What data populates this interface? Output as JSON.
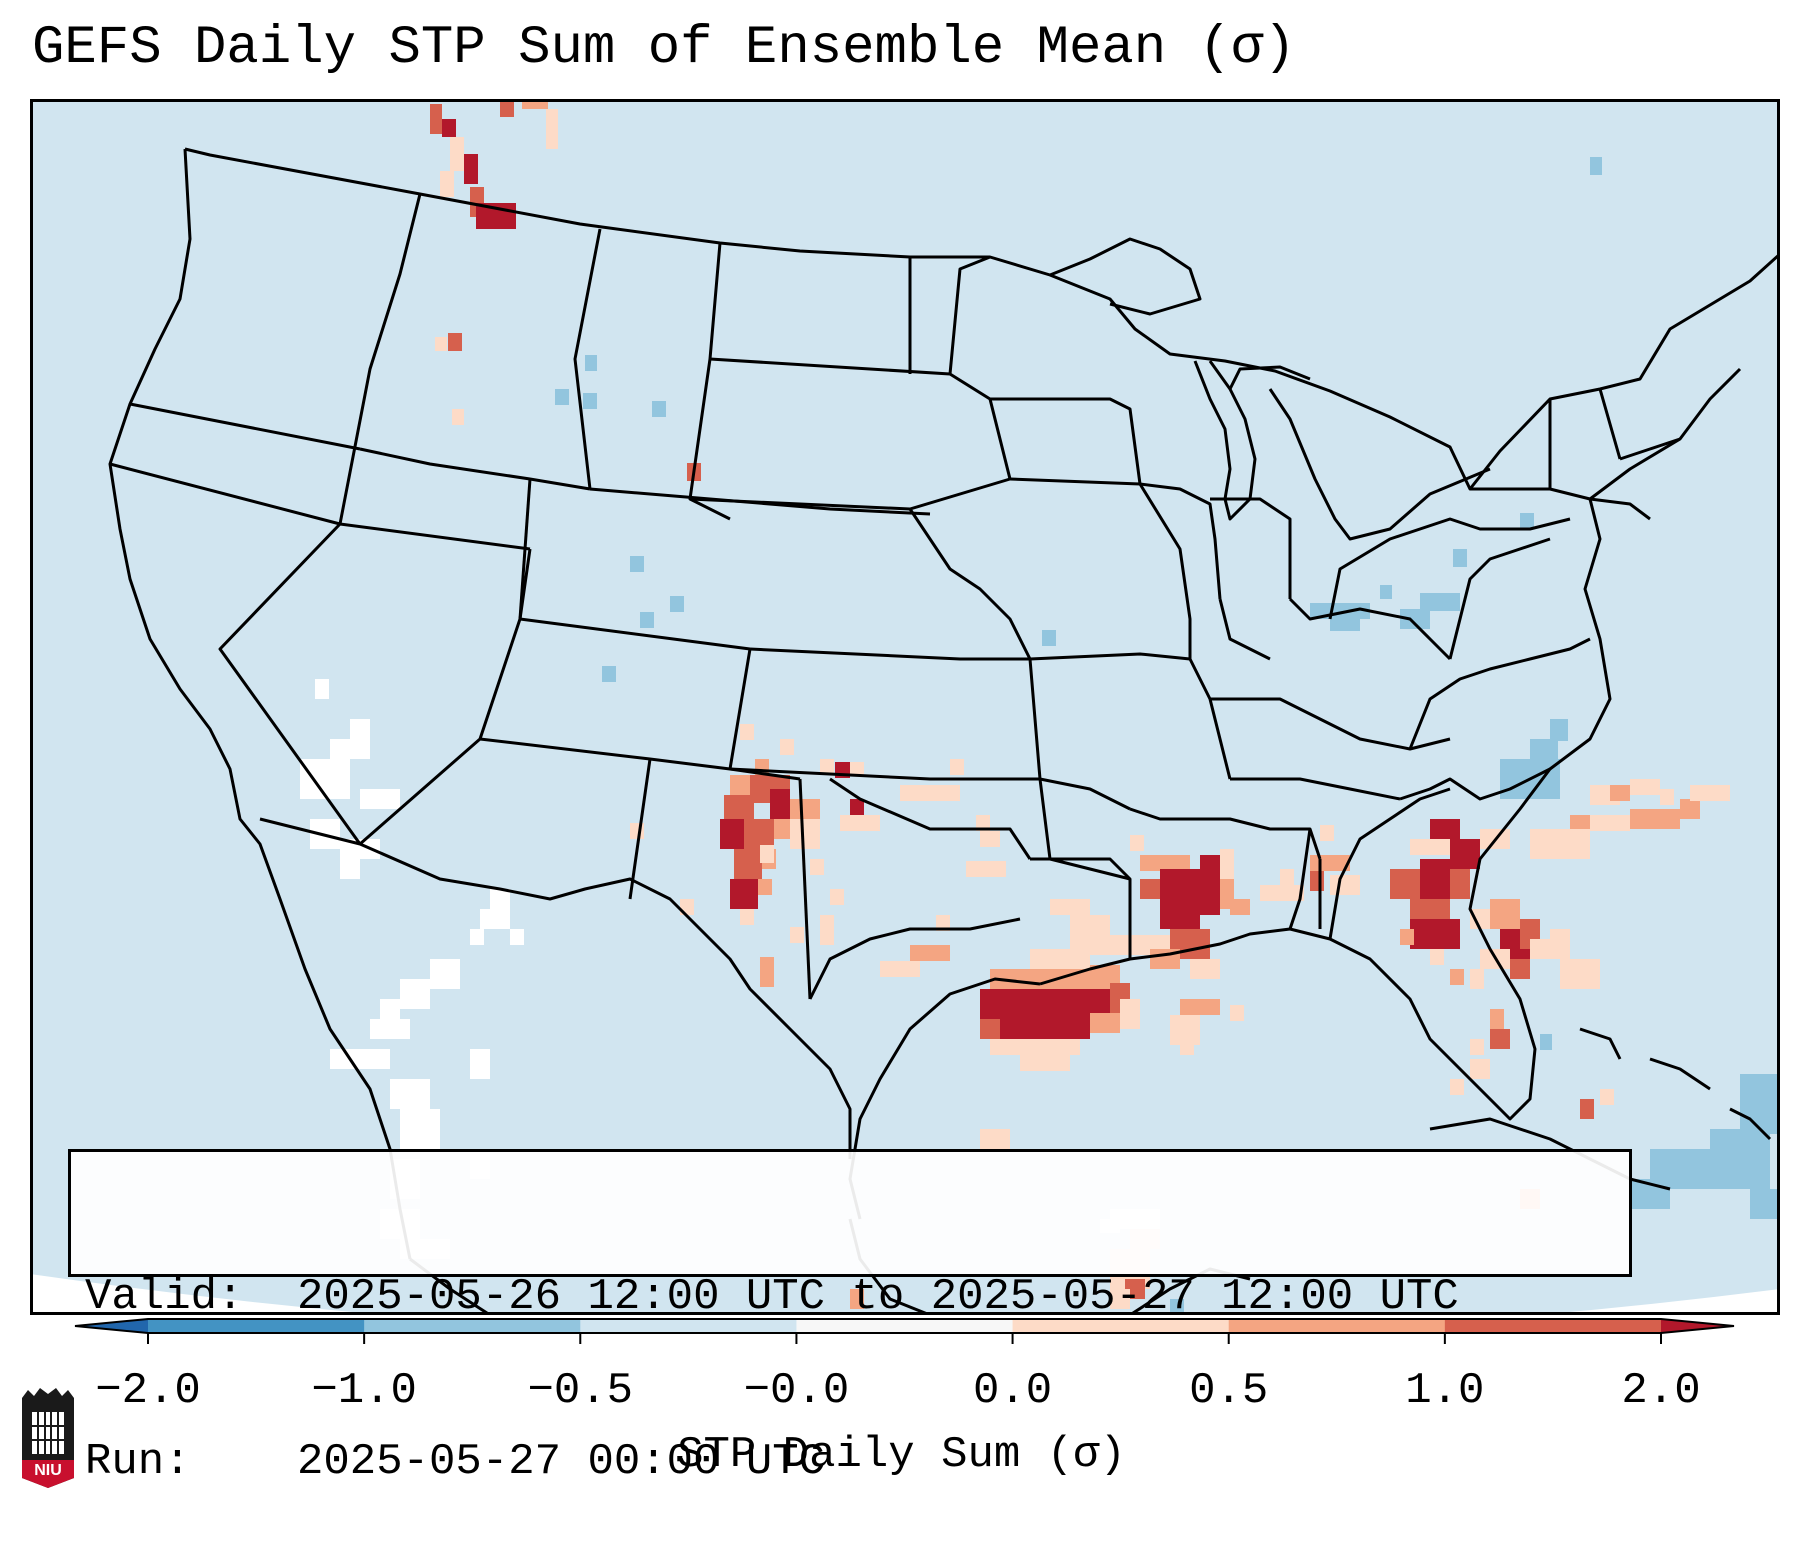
{
  "title": "GEFS Daily STP Sum of Ensemble Mean (σ)",
  "info": {
    "valid_label": "Valid:",
    "valid_value": "2025-05-26 12:00 UTC to 2025-05-27 12:00 UTC",
    "run_label": "Run:",
    "run_value": "2025-05-27 00:00 UTC"
  },
  "colorbar": {
    "title": "STP Daily Sum (σ)",
    "ticks": [
      "−2.0",
      "−1.0",
      "−0.5",
      "−0.0",
      "0.0",
      "0.5",
      "1.0",
      "2.0"
    ],
    "colors": [
      "#4393c3",
      "#92c5de",
      "#d1e5f0",
      "#f7f7f7",
      "#fddbc7",
      "#f4a582",
      "#d6604d"
    ],
    "extend_low": "#2166ac",
    "extend_high": "#b2182b"
  },
  "map": {
    "background": "#d1e5f0",
    "projection": "Lambert Conformal (CONUS)"
  },
  "logo": {
    "text": "NIU"
  }
}
